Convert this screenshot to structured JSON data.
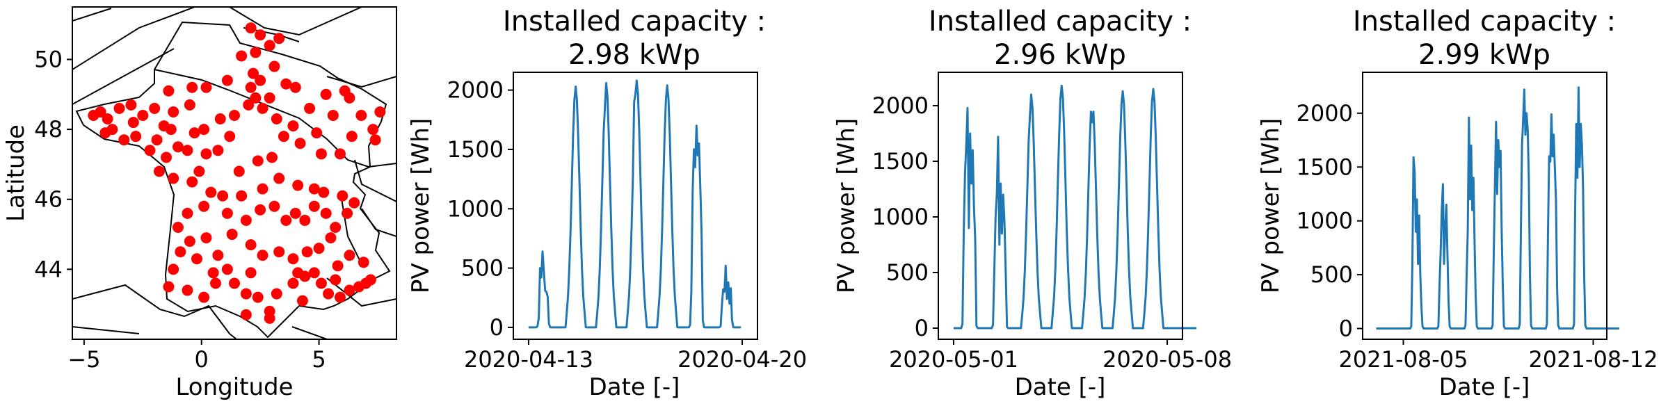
{
  "colors": {
    "line": "#1f77b4",
    "points": "#ff0000",
    "axes": "#000000",
    "background": "#ffffff"
  },
  "chart_data": [
    {
      "type": "scatter",
      "title": "",
      "xlabel": "Longitude",
      "ylabel": "Latitude",
      "xlim": [
        -5.5,
        8.3
      ],
      "ylim": [
        42.0,
        51.5
      ],
      "xticks": [
        -5,
        0,
        5
      ],
      "xtick_labels": [
        "−5",
        "0",
        "5"
      ],
      "yticks": [
        44,
        46,
        48,
        50
      ],
      "ytick_labels": [
        "44",
        "46",
        "48",
        "50"
      ],
      "grid": false,
      "background": "country borders of France and neighbours",
      "points": [
        [
          -4.6,
          48.4
        ],
        [
          -4.3,
          48.5
        ],
        [
          -4.0,
          48.3
        ],
        [
          -3.5,
          48.6
        ],
        [
          -3.0,
          48.7
        ],
        [
          -2.5,
          48.4
        ],
        [
          -2.0,
          48.6
        ],
        [
          -1.6,
          48.1
        ],
        [
          -1.2,
          48.5
        ],
        [
          -0.5,
          48.7
        ],
        [
          -3.8,
          48.0
        ],
        [
          -2.8,
          47.8
        ],
        [
          -2.2,
          47.4
        ],
        [
          -1.5,
          47.2
        ],
        [
          -1.0,
          47.5
        ],
        [
          -0.6,
          47.4
        ],
        [
          -1.8,
          46.8
        ],
        [
          -1.2,
          46.6
        ],
        [
          -0.4,
          46.5
        ],
        [
          0.2,
          47.3
        ],
        [
          0.7,
          47.4
        ],
        [
          1.2,
          47.8
        ],
        [
          0.1,
          48.0
        ],
        [
          1.4,
          48.4
        ],
        [
          2.0,
          48.7
        ],
        [
          2.3,
          48.9
        ],
        [
          2.6,
          48.6
        ],
        [
          2.9,
          48.9
        ],
        [
          2.1,
          49.2
        ],
        [
          2.5,
          49.4
        ],
        [
          1.1,
          49.4
        ],
        [
          0.2,
          49.2
        ],
        [
          -0.4,
          49.2
        ],
        [
          -1.4,
          49.1
        ],
        [
          3.1,
          49.8
        ],
        [
          2.3,
          50.2
        ],
        [
          2.9,
          50.4
        ],
        [
          3.3,
          50.6
        ],
        [
          2.1,
          50.9
        ],
        [
          2.5,
          50.7
        ],
        [
          3.6,
          49.3
        ],
        [
          4.0,
          49.2
        ],
        [
          4.6,
          48.6
        ],
        [
          5.3,
          49.0
        ],
        [
          6.1,
          49.1
        ],
        [
          6.8,
          48.4
        ],
        [
          7.6,
          48.5
        ],
        [
          7.3,
          48.0
        ],
        [
          7.4,
          47.7
        ],
        [
          6.4,
          47.8
        ],
        [
          5.9,
          47.3
        ],
        [
          5.1,
          47.3
        ],
        [
          4.2,
          47.6
        ],
        [
          3.5,
          47.8
        ],
        [
          3.0,
          47.2
        ],
        [
          2.4,
          47.1
        ],
        [
          1.6,
          46.8
        ],
        [
          0.9,
          46.1
        ],
        [
          0.1,
          45.8
        ],
        [
          -0.6,
          45.6
        ],
        [
          -1.0,
          45.2
        ],
        [
          -0.5,
          44.8
        ],
        [
          -0.2,
          44.3
        ],
        [
          -1.2,
          44.0
        ],
        [
          -1.4,
          43.5
        ],
        [
          -0.6,
          43.4
        ],
        [
          0.1,
          43.2
        ],
        [
          0.6,
          43.6
        ],
        [
          1.4,
          43.6
        ],
        [
          1.9,
          43.3
        ],
        [
          2.4,
          43.2
        ],
        [
          2.9,
          42.8
        ],
        [
          3.2,
          43.3
        ],
        [
          3.9,
          43.6
        ],
        [
          4.4,
          43.8
        ],
        [
          4.8,
          43.9
        ],
        [
          5.4,
          43.3
        ],
        [
          5.9,
          43.2
        ],
        [
          6.3,
          43.4
        ],
        [
          6.7,
          43.5
        ],
        [
          7.2,
          43.7
        ],
        [
          7.0,
          43.6
        ],
        [
          5.7,
          43.7
        ],
        [
          5.1,
          43.6
        ],
        [
          4.3,
          43.1
        ],
        [
          2.1,
          43.9
        ],
        [
          1.1,
          44.0
        ],
        [
          0.7,
          44.4
        ],
        [
          0.2,
          44.9
        ],
        [
          1.3,
          45.0
        ],
        [
          1.9,
          45.4
        ],
        [
          2.5,
          45.7
        ],
        [
          3.1,
          45.8
        ],
        [
          3.6,
          45.4
        ],
        [
          4.0,
          45.6
        ],
        [
          4.4,
          45.4
        ],
        [
          4.8,
          45.8
        ],
        [
          5.3,
          45.6
        ],
        [
          5.7,
          45.2
        ],
        [
          6.2,
          45.6
        ],
        [
          6.5,
          45.9
        ],
        [
          6.0,
          46.1
        ],
        [
          5.2,
          46.2
        ],
        [
          4.8,
          46.3
        ],
        [
          4.1,
          46.4
        ],
        [
          3.3,
          46.6
        ],
        [
          2.6,
          46.3
        ],
        [
          1.7,
          46.1
        ],
        [
          5.5,
          44.9
        ],
        [
          5.0,
          44.6
        ],
        [
          4.5,
          44.5
        ],
        [
          3.9,
          44.3
        ],
        [
          3.3,
          44.5
        ],
        [
          2.6,
          44.4
        ],
        [
          6.3,
          44.4
        ],
        [
          6.9,
          44.2
        ],
        [
          5.8,
          44.1
        ],
        [
          4.1,
          43.9
        ],
        [
          1.9,
          42.7
        ],
        [
          2.9,
          42.6
        ],
        [
          -0.1,
          46.8
        ],
        [
          0.4,
          46.2
        ],
        [
          -1.9,
          47.7
        ],
        [
          -1.3,
          48.0
        ],
        [
          0.8,
          48.3
        ],
        [
          3.9,
          48.1
        ],
        [
          4.9,
          47.9
        ],
        [
          5.6,
          48.4
        ],
        [
          6.3,
          48.9
        ],
        [
          3.2,
          48.3
        ],
        [
          2.2,
          49.6
        ],
        [
          1.7,
          50.1
        ],
        [
          -0.3,
          47.9
        ],
        [
          -3.3,
          47.7
        ],
        [
          -2.9,
          48.2
        ],
        [
          -4.1,
          47.9
        ],
        [
          1.1,
          45.6
        ],
        [
          2.1,
          44.7
        ],
        [
          0.5,
          43.9
        ],
        [
          -0.9,
          44.5
        ]
      ]
    },
    {
      "type": "line",
      "title": "Installed capacity :\n2.98 kWp",
      "title_lines": [
        "Installed capacity :",
        "2.98 kWp"
      ],
      "xlabel": "Date [-]",
      "ylabel": "PV power [Wh]",
      "x_start": "2020-04-13 00:00",
      "x_step_hours": 1,
      "xlim": [
        "2020-04-12 12:00",
        "2020-04-20 12:00"
      ],
      "xticks": [
        "2020-04-13",
        "2020-04-20"
      ],
      "ylim": [
        -100,
        2150
      ],
      "yticks": [
        0,
        500,
        1000,
        1500,
        2000
      ],
      "grid": false,
      "series": [
        {
          "values": []
        }
      ],
      "days": [
        {
          "shape": "spiky",
          "peak": 640,
          "samples": [
            0,
            0,
            0,
            0,
            0,
            0,
            0,
            10,
            80,
            500,
            420,
            640,
            470,
            310,
            300,
            260,
            30,
            0,
            0,
            0,
            0,
            0,
            0,
            0
          ]
        },
        {
          "shape": "smooth",
          "peak": 2030
        },
        {
          "shape": "smooth",
          "peak": 2060,
          "dips": [
            [
              12,
              1850
            ]
          ]
        },
        {
          "shape": "smooth",
          "peak": 2080,
          "dips": [
            [
              11,
              1900
            ]
          ]
        },
        {
          "shape": "smooth",
          "peak": 2040
        },
        {
          "shape": "spiky",
          "peak": 1700,
          "samples": [
            0,
            0,
            0,
            0,
            0,
            0,
            0,
            20,
            300,
            1150,
            1500,
            1350,
            1700,
            1450,
            1550,
            1200,
            800,
            60,
            0,
            0,
            0,
            0,
            0,
            0
          ]
        },
        {
          "shape": "spiky",
          "peak": 520,
          "samples": [
            0,
            0,
            0,
            0,
            0,
            0,
            0,
            10,
            180,
            320,
            300,
            520,
            240,
            380,
            200,
            330,
            60,
            0,
            0,
            0,
            0,
            0,
            0,
            0
          ]
        }
      ]
    },
    {
      "type": "line",
      "title": "Installed capacity :\n2.96 kWp",
      "title_lines": [
        "Installed capacity :",
        "2.96 kWp"
      ],
      "xlabel": "Date [-]",
      "ylabel": "PV power [Wh]",
      "x_start": "2020-05-01 00:00",
      "x_step_hours": 1,
      "xlim": [
        "2020-04-30 12:00",
        "2020-05-08 12:00"
      ],
      "xticks": [
        "2020-05-01",
        "2020-05-08"
      ],
      "ylim": [
        -100,
        2300
      ],
      "yticks": [
        0,
        500,
        1000,
        1500,
        2000
      ],
      "grid": false,
      "series": [
        {
          "values": []
        }
      ],
      "days": [
        {
          "shape": "spiky",
          "peak": 1980,
          "samples": [
            0,
            0,
            0,
            0,
            0,
            0,
            0,
            40,
            900,
            1400,
            1650,
            1980,
            900,
            1750,
            1300,
            1600,
            1100,
            800,
            20,
            0,
            0,
            0,
            0,
            0
          ]
        },
        {
          "shape": "spiky",
          "peak": 1720,
          "samples": [
            0,
            0,
            0,
            0,
            0,
            0,
            0,
            30,
            500,
            1000,
            1200,
            1720,
            750,
            1300,
            850,
            1200,
            950,
            500,
            10,
            0,
            0,
            0,
            0,
            0
          ]
        },
        {
          "shape": "smooth",
          "peak": 2100,
          "dips": [
            [
              12,
              1900
            ]
          ]
        },
        {
          "shape": "smooth",
          "peak": 2180
        },
        {
          "shape": "smooth",
          "peak": 2060,
          "dips": [
            [
              13,
              1850
            ]
          ]
        },
        {
          "shape": "smooth",
          "peak": 2130
        },
        {
          "shape": "smooth",
          "peak": 2150
        },
        {
          "shape": "zero"
        }
      ]
    },
    {
      "type": "line",
      "title": "Installed capacity :\n2.99 kWp",
      "title_lines": [
        "Installed capacity :",
        "2.99 kWp"
      ],
      "xlabel": "Date [-]",
      "ylabel": "PV power [Wh]",
      "x_start": "2021-08-04 00:00",
      "x_step_hours": 1,
      "xlim": [
        "2021-08-03 12:00",
        "2021-08-12 12:00"
      ],
      "xticks": [
        "2021-08-05",
        "2021-08-12"
      ],
      "ylim": [
        -100,
        2380
      ],
      "yticks": [
        0,
        500,
        1000,
        1500,
        2000
      ],
      "grid": false,
      "series": [
        {
          "values": []
        }
      ],
      "days": [
        {
          "shape": "zero"
        },
        {
          "shape": "spiky",
          "peak": 1590,
          "samples": [
            0,
            0,
            0,
            0,
            0,
            0,
            0,
            20,
            600,
            1590,
            1450,
            900,
            1200,
            600,
            1050,
            500,
            200,
            20,
            0,
            0,
            0,
            0,
            0,
            0
          ]
        },
        {
          "shape": "spiky",
          "peak": 1340,
          "samples": [
            0,
            0,
            0,
            0,
            0,
            0,
            0,
            20,
            400,
            700,
            1100,
            1340,
            600,
            900,
            1150,
            700,
            250,
            20,
            0,
            0,
            0,
            0,
            0,
            0
          ]
        },
        {
          "shape": "spiky",
          "peak": 1960,
          "samples": [
            0,
            0,
            0,
            0,
            0,
            0,
            0,
            30,
            500,
            900,
            1960,
            1200,
            1700,
            1100,
            1400,
            800,
            300,
            20,
            0,
            0,
            0,
            0,
            0,
            0
          ]
        },
        {
          "shape": "spiky",
          "peak": 1920,
          "samples": [
            0,
            0,
            0,
            0,
            0,
            0,
            0,
            30,
            700,
            1300,
            1920,
            1250,
            1750,
            1500,
            1650,
            900,
            400,
            20,
            0,
            0,
            0,
            0,
            0,
            0
          ]
        },
        {
          "shape": "spiky",
          "peak": 2220,
          "samples": [
            0,
            0,
            0,
            0,
            0,
            0,
            0,
            40,
            900,
            1700,
            1950,
            2220,
            1800,
            2000,
            1850,
            1400,
            500,
            30,
            0,
            0,
            0,
            0,
            0,
            0
          ]
        },
        {
          "shape": "spiky",
          "peak": 1990,
          "samples": [
            0,
            0,
            0,
            0,
            0,
            0,
            0,
            40,
            900,
            1600,
            1550,
            1990,
            1600,
            1800,
            1500,
            1200,
            400,
            30,
            0,
            0,
            0,
            0,
            0,
            0
          ]
        },
        {
          "shape": "spiky",
          "peak": 2240,
          "samples": [
            0,
            0,
            0,
            0,
            0,
            0,
            0,
            40,
            1100,
            1900,
            1400,
            2240,
            1500,
            1900,
            1700,
            1300,
            500,
            30,
            0,
            0,
            0,
            0,
            0,
            0
          ]
        },
        {
          "shape": "zero"
        }
      ]
    }
  ]
}
